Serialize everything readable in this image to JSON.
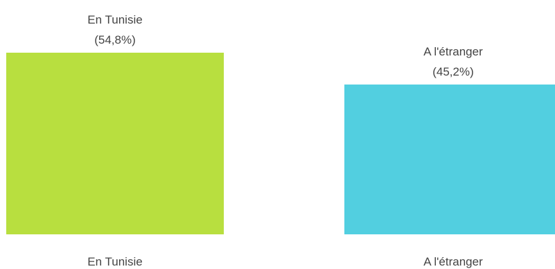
{
  "chart_data": {
    "type": "bar",
    "categories": [
      "En Tunisie",
      "A l'étranger"
    ],
    "values": [
      54.8,
      45.2
    ],
    "value_labels": [
      "(54,8%)",
      "(45,2%)"
    ],
    "colors": [
      "#b8df3f",
      "#52cfe0"
    ],
    "title": "",
    "xlabel": "",
    "ylabel": "",
    "ylim": [
      0,
      54.8
    ],
    "grid": false,
    "legend": "none"
  }
}
